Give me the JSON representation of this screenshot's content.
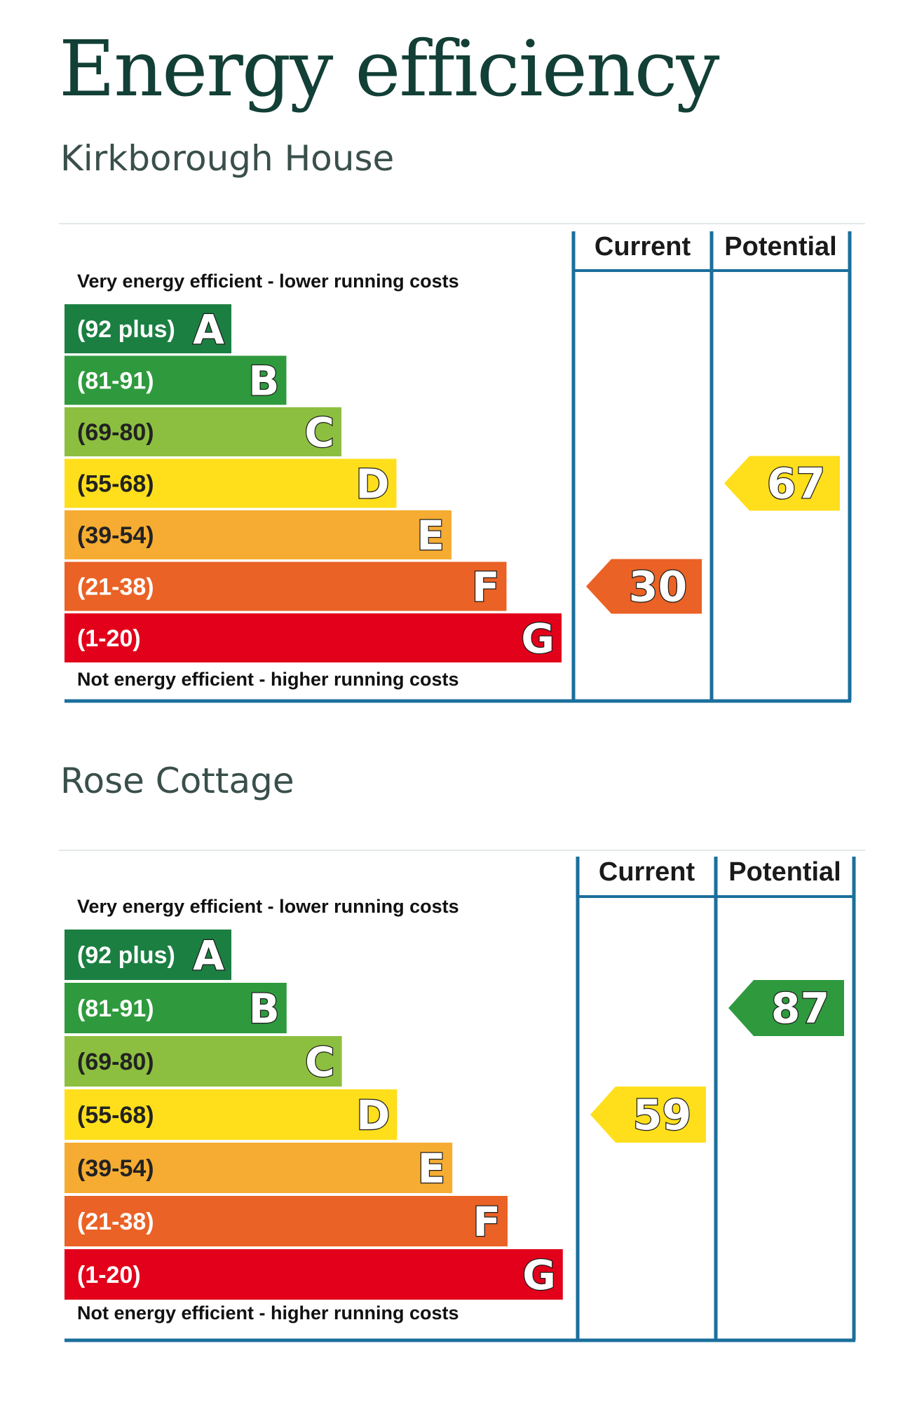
{
  "page": {
    "title": "Energy efficiency"
  },
  "properties": [
    {
      "name": "Kirkborough House"
    },
    {
      "name": "Rose Cottage"
    }
  ],
  "chart_data": [
    {
      "type": "bar",
      "property": "Kirkborough House",
      "column_headers": [
        "Current",
        "Potential"
      ],
      "top_caption": "Very energy efficient - lower running costs",
      "bottom_caption": "Not energy efficient - higher running costs",
      "bands": [
        {
          "range": "(92 plus)",
          "letter": "A",
          "color": "#1b7f42"
        },
        {
          "range": "(81-91)",
          "letter": "B",
          "color": "#2e9a3d"
        },
        {
          "range": "(69-80)",
          "letter": "C",
          "color": "#8cbf3f"
        },
        {
          "range": "(55-68)",
          "letter": "D",
          "color": "#ffdf1b"
        },
        {
          "range": "(39-54)",
          "letter": "E",
          "color": "#f6ac32"
        },
        {
          "range": "(21-38)",
          "letter": "F",
          "color": "#ea6225"
        },
        {
          "range": "(1-20)",
          "letter": "G",
          "color": "#e2001a"
        }
      ],
      "scores": {
        "current": 30,
        "potential": 67
      }
    },
    {
      "type": "bar",
      "property": "Rose Cottage",
      "column_headers": [
        "Current",
        "Potential"
      ],
      "top_caption": "Very energy efficient - lower running costs",
      "bottom_caption": "Not energy efficient - higher running costs",
      "bands": [
        {
          "range": "(92 plus)",
          "letter": "A",
          "color": "#1b7f42"
        },
        {
          "range": "(81-91)",
          "letter": "B",
          "color": "#2e9a3d"
        },
        {
          "range": "(69-80)",
          "letter": "C",
          "color": "#8cbf3f"
        },
        {
          "range": "(55-68)",
          "letter": "D",
          "color": "#ffdf1b"
        },
        {
          "range": "(39-54)",
          "letter": "E",
          "color": "#f6ac32"
        },
        {
          "range": "(21-38)",
          "letter": "F",
          "color": "#ea6225"
        },
        {
          "range": "(1-20)",
          "letter": "G",
          "color": "#e2001a"
        }
      ],
      "scores": {
        "current": 59,
        "potential": 87
      }
    }
  ]
}
